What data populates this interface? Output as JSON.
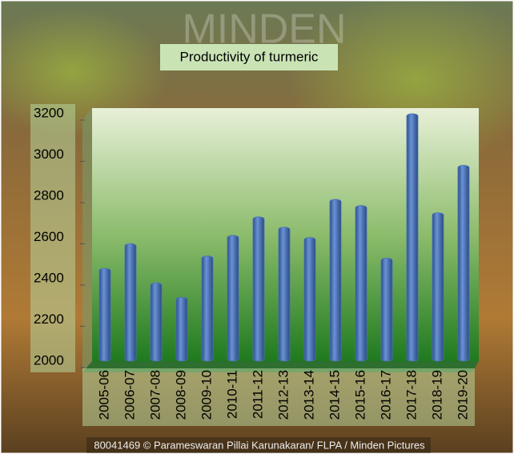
{
  "chart_data": {
    "type": "bar",
    "title": "Productivity of turmeric",
    "categories": [
      "2005-06",
      "2006-07",
      "2007-08",
      "2008-09",
      "2009-10",
      "2010-11",
      "2011-12",
      "2012-13",
      "2013-14",
      "2014-15",
      "2015-16",
      "2016-17",
      "2017-18",
      "2018-19",
      "2019-20"
    ],
    "values": [
      2450,
      2570,
      2380,
      2310,
      2510,
      2610,
      2700,
      2650,
      2600,
      2785,
      2755,
      2500,
      3200,
      2720,
      2950
    ],
    "color": "#4a72b8",
    "ylim": [
      2000,
      3200
    ],
    "yticks": [
      2000,
      2200,
      2400,
      2600,
      2800,
      3000,
      3200
    ],
    "grid": false,
    "watermark": "MINDEN",
    "credit": "80041469 © Parameswaran Pillai Karunakaran/ FLPA / Minden Pictures"
  }
}
